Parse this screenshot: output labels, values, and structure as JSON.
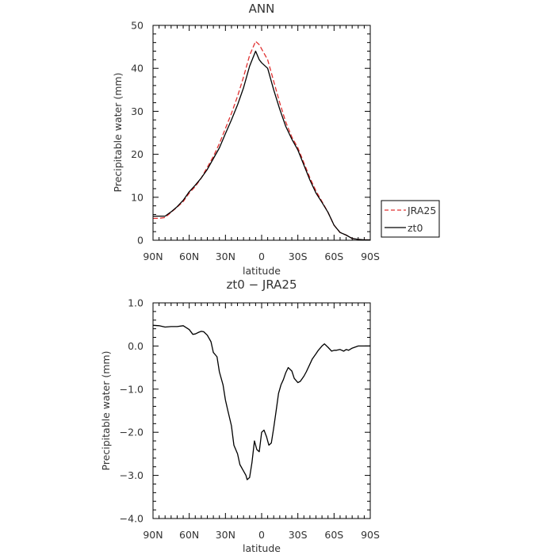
{
  "chart_data": [
    {
      "type": "line",
      "title": "ANN",
      "xlabel": "latitude",
      "ylabel": "Precipitable water (mm)",
      "xlim": [
        90,
        -90
      ],
      "ylim": [
        0,
        50
      ],
      "xticks": [
        90,
        60,
        30,
        0,
        -30,
        -60,
        -90
      ],
      "xtick_labels": [
        "90N",
        "60N",
        "30N",
        "0",
        "30S",
        "60S",
        "90S"
      ],
      "yticks": [
        0,
        10,
        20,
        30,
        40,
        50
      ],
      "ytick_labels": [
        "0",
        "10",
        "20",
        "30",
        "40",
        "50"
      ],
      "legend_position": "right",
      "series": [
        {
          "name": "JRA25",
          "color": "#e03030",
          "dash": "dashed",
          "x": [
            90,
            85,
            80,
            75,
            70,
            65,
            60,
            55,
            50,
            45,
            40,
            35,
            30,
            25,
            20,
            15,
            10,
            5,
            2,
            0,
            -5,
            -10,
            -15,
            -20,
            -25,
            -30,
            -35,
            -40,
            -45,
            -50,
            -55,
            -60,
            -65,
            -70,
            -75,
            -80,
            -85,
            -90
          ],
          "y": [
            5.1,
            5.1,
            5.3,
            6.5,
            7.7,
            9.0,
            11.0,
            12.5,
            14.5,
            17.0,
            19.5,
            22.5,
            26.0,
            29.5,
            33.5,
            38.0,
            43.0,
            46.3,
            45.5,
            44.5,
            42.0,
            37.0,
            32.0,
            27.5,
            24.0,
            21.5,
            18.0,
            14.5,
            11.5,
            9.0,
            6.5,
            3.5,
            1.8,
            1.2,
            0.4,
            0.2,
            0.1,
            0.1
          ]
        },
        {
          "name": "zt0",
          "color": "#000000",
          "dash": "solid",
          "x": [
            90,
            85,
            80,
            75,
            70,
            65,
            60,
            55,
            50,
            45,
            40,
            35,
            30,
            25,
            20,
            15,
            10,
            5,
            2,
            0,
            -5,
            -10,
            -15,
            -20,
            -25,
            -30,
            -35,
            -40,
            -45,
            -50,
            -55,
            -60,
            -65,
            -70,
            -75,
            -80,
            -85,
            -90
          ],
          "y": [
            5.6,
            5.6,
            5.6,
            6.6,
            7.8,
            9.3,
            11.3,
            12.8,
            14.5,
            16.5,
            19.0,
            21.5,
            24.8,
            28.0,
            31.5,
            35.5,
            40.5,
            44.0,
            42.0,
            41.3,
            40.0,
            35.0,
            30.5,
            26.5,
            23.5,
            21.0,
            17.5,
            14.0,
            11.0,
            8.8,
            6.5,
            3.5,
            1.8,
            1.2,
            0.4,
            0.2,
            0.1,
            0.1
          ]
        }
      ]
    },
    {
      "type": "line",
      "title": "zt0 − JRA25",
      "xlabel": "latitude",
      "ylabel": "Precipitable water (mm)",
      "xlim": [
        90,
        -90
      ],
      "ylim": [
        -4,
        1
      ],
      "xticks": [
        90,
        60,
        30,
        0,
        -30,
        -60,
        -90
      ],
      "xtick_labels": [
        "90N",
        "60N",
        "30N",
        "0",
        "30S",
        "60S",
        "90S"
      ],
      "yticks": [
        1,
        0,
        -1,
        -2,
        -3,
        -4
      ],
      "ytick_labels": [
        "1.0",
        "0.0",
        "−1.0",
        "−2.0",
        "−3.0",
        "−4.0"
      ],
      "series": [
        {
          "color": "#000000",
          "dash": "solid",
          "x": [
            90,
            85,
            80,
            75,
            70,
            65,
            60,
            57,
            55,
            52,
            50,
            48,
            45,
            42,
            40,
            37,
            35,
            32,
            30,
            28,
            25,
            23,
            20,
            18,
            15,
            13,
            12,
            10,
            8,
            6,
            4,
            2,
            0,
            -2,
            -4,
            -6,
            -8,
            -10,
            -12,
            -14,
            -16,
            -18,
            -20,
            -22,
            -25,
            -27,
            -30,
            -32,
            -35,
            -37,
            -40,
            -42,
            -45,
            -47,
            -50,
            -52,
            -55,
            -58,
            -60,
            -62,
            -65,
            -68,
            -70,
            -72,
            -75,
            -78,
            -80,
            -82,
            -85,
            -87,
            -90
          ],
          "y": [
            0.48,
            0.47,
            0.44,
            0.45,
            0.45,
            0.47,
            0.38,
            0.27,
            0.28,
            0.32,
            0.34,
            0.33,
            0.25,
            0.1,
            -0.15,
            -0.25,
            -0.6,
            -0.9,
            -1.25,
            -1.5,
            -1.85,
            -2.3,
            -2.5,
            -2.75,
            -2.9,
            -3.0,
            -3.1,
            -3.05,
            -2.7,
            -2.2,
            -2.4,
            -2.45,
            -2.0,
            -1.95,
            -2.1,
            -2.3,
            -2.25,
            -1.9,
            -1.5,
            -1.1,
            -0.9,
            -0.78,
            -0.62,
            -0.5,
            -0.58,
            -0.75,
            -0.85,
            -0.82,
            -0.7,
            -0.6,
            -0.42,
            -0.3,
            -0.18,
            -0.1,
            0.0,
            0.05,
            -0.03,
            -0.12,
            -0.1,
            -0.1,
            -0.08,
            -0.12,
            -0.08,
            -0.1,
            -0.05,
            -0.02,
            0.0,
            0.0,
            0.0,
            0.0,
            0.0
          ]
        }
      ]
    }
  ]
}
